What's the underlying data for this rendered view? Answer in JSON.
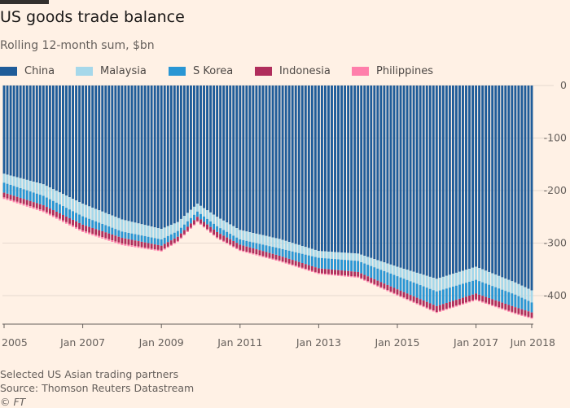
{
  "title": "US goods trade balance",
  "subtitle": "Rolling 12-month sum, $bn",
  "footnote": "Selected US Asian trading partners",
  "source": "Source: Thomson Reuters Datastream",
  "credit": "© FT",
  "chart_data": {
    "type": "bar",
    "stacked": true,
    "title": "US goods trade balance",
    "subtitle": "Rolling 12-month sum, $bn",
    "ylim": [
      -450,
      0
    ],
    "yticks": [
      0,
      -100,
      -200,
      -300,
      -400
    ],
    "ytick_labels": [
      "0",
      "-100",
      "-200",
      "-300",
      "-400"
    ],
    "xtick_labels": [
      "2005",
      "Jan 2007",
      "Jan 2009",
      "Jan 2011",
      "Jan 2013",
      "Jan 2015",
      "Jan 2017",
      "Jun 2018"
    ],
    "x_start": "Jan 2005",
    "x_end": "Jun 2018",
    "frequency": "monthly",
    "legend_position": "top",
    "series": [
      {
        "name": "China",
        "color": "#1f5c99"
      },
      {
        "name": "Malaysia",
        "color": "#a6d8ea"
      },
      {
        "name": "S Korea",
        "color": "#2996d4"
      },
      {
        "name": "Indonesia",
        "color": "#b02e5c"
      },
      {
        "name": "Philippines",
        "color": "#ff7fab"
      }
    ],
    "keyframes": [
      {
        "date": "Jan 2005",
        "china": -168,
        "malaysia": -17,
        "korea": -19,
        "indonesia": -9,
        "philippines": -3
      },
      {
        "date": "Jan 2006",
        "china": -188,
        "malaysia": -22,
        "korea": -18,
        "indonesia": -10,
        "philippines": -3
      },
      {
        "date": "Jan 2007",
        "china": -225,
        "malaysia": -24,
        "korea": -16,
        "indonesia": -11,
        "philippines": -3
      },
      {
        "date": "Jan 2008",
        "china": -255,
        "malaysia": -23,
        "korea": -12,
        "indonesia": -11,
        "philippines": -3
      },
      {
        "date": "Jan 2009",
        "china": -273,
        "malaysia": -20,
        "korea": -12,
        "indonesia": -9,
        "philippines": -2
      },
      {
        "date": "Jun 2009",
        "china": -260,
        "malaysia": -17,
        "korea": -11,
        "indonesia": -8,
        "philippines": -2
      },
      {
        "date": "Dec 2009",
        "china": -225,
        "malaysia": -15,
        "korea": -10,
        "indonesia": -8,
        "philippines": -2
      },
      {
        "date": "Jun 2010",
        "china": -250,
        "malaysia": -18,
        "korea": -11,
        "indonesia": -10,
        "philippines": -2
      },
      {
        "date": "Jan 2011",
        "china": -275,
        "malaysia": -18,
        "korea": -10,
        "indonesia": -10,
        "philippines": -2
      },
      {
        "date": "Jan 2012",
        "china": -292,
        "malaysia": -18,
        "korea": -14,
        "indonesia": -9,
        "philippines": -2
      },
      {
        "date": "Jan 2013",
        "china": -315,
        "malaysia": -13,
        "korea": -20,
        "indonesia": -9,
        "philippines": -2
      },
      {
        "date": "Jan 2014",
        "china": -320,
        "malaysia": -14,
        "korea": -21,
        "indonesia": -9,
        "philippines": -2
      },
      {
        "date": "Jan 2015",
        "china": -345,
        "malaysia": -18,
        "korea": -25,
        "indonesia": -10,
        "philippines": -2
      },
      {
        "date": "Jan 2016",
        "china": -368,
        "malaysia": -24,
        "korea": -28,
        "indonesia": -11,
        "philippines": -2
      },
      {
        "date": "Jan 2017",
        "china": -345,
        "malaysia": -25,
        "korea": -26,
        "indonesia": -11,
        "philippines": -2
      },
      {
        "date": "Jan 2018",
        "china": -375,
        "malaysia": -23,
        "korea": -24,
        "indonesia": -11,
        "philippines": -2
      },
      {
        "date": "Jun 2018",
        "china": -390,
        "malaysia": -23,
        "korea": -19,
        "indonesia": -10,
        "philippines": -2
      }
    ]
  }
}
